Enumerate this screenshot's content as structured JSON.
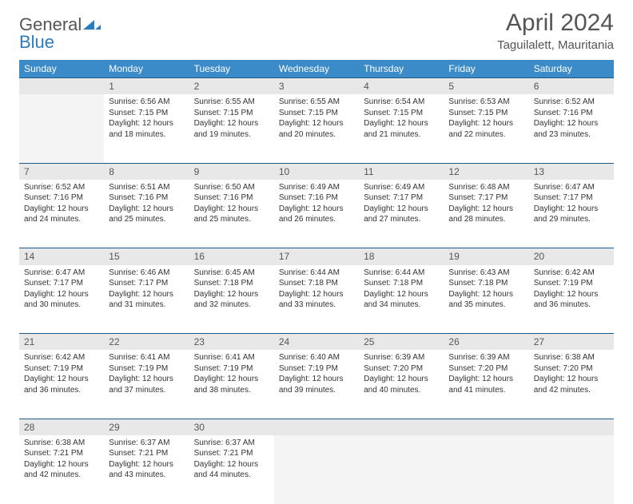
{
  "logo": {
    "text1": "General",
    "text2": "Blue"
  },
  "title": {
    "month": "April 2024",
    "location": "Taguilalett, Mauritania"
  },
  "colors": {
    "header_bg": "#3b8bc8",
    "header_text": "#ffffff",
    "daynum_bg": "#e8e8e8",
    "border": "#1f5a87",
    "empty_bg": "#f4f4f4",
    "text": "#333333",
    "title_color": "#555555"
  },
  "weekdays": [
    "Sunday",
    "Monday",
    "Tuesday",
    "Wednesday",
    "Thursday",
    "Friday",
    "Saturday"
  ],
  "weeks": [
    {
      "nums": [
        "",
        "1",
        "2",
        "3",
        "4",
        "5",
        "6"
      ],
      "cells": [
        null,
        {
          "sunrise": "6:56 AM",
          "sunset": "7:15 PM",
          "daylight": "12 hours and 18 minutes."
        },
        {
          "sunrise": "6:55 AM",
          "sunset": "7:15 PM",
          "daylight": "12 hours and 19 minutes."
        },
        {
          "sunrise": "6:55 AM",
          "sunset": "7:15 PM",
          "daylight": "12 hours and 20 minutes."
        },
        {
          "sunrise": "6:54 AM",
          "sunset": "7:15 PM",
          "daylight": "12 hours and 21 minutes."
        },
        {
          "sunrise": "6:53 AM",
          "sunset": "7:15 PM",
          "daylight": "12 hours and 22 minutes."
        },
        {
          "sunrise": "6:52 AM",
          "sunset": "7:16 PM",
          "daylight": "12 hours and 23 minutes."
        }
      ]
    },
    {
      "nums": [
        "7",
        "8",
        "9",
        "10",
        "11",
        "12",
        "13"
      ],
      "cells": [
        {
          "sunrise": "6:52 AM",
          "sunset": "7:16 PM",
          "daylight": "12 hours and 24 minutes."
        },
        {
          "sunrise": "6:51 AM",
          "sunset": "7:16 PM",
          "daylight": "12 hours and 25 minutes."
        },
        {
          "sunrise": "6:50 AM",
          "sunset": "7:16 PM",
          "daylight": "12 hours and 25 minutes."
        },
        {
          "sunrise": "6:49 AM",
          "sunset": "7:16 PM",
          "daylight": "12 hours and 26 minutes."
        },
        {
          "sunrise": "6:49 AM",
          "sunset": "7:17 PM",
          "daylight": "12 hours and 27 minutes."
        },
        {
          "sunrise": "6:48 AM",
          "sunset": "7:17 PM",
          "daylight": "12 hours and 28 minutes."
        },
        {
          "sunrise": "6:47 AM",
          "sunset": "7:17 PM",
          "daylight": "12 hours and 29 minutes."
        }
      ]
    },
    {
      "nums": [
        "14",
        "15",
        "16",
        "17",
        "18",
        "19",
        "20"
      ],
      "cells": [
        {
          "sunrise": "6:47 AM",
          "sunset": "7:17 PM",
          "daylight": "12 hours and 30 minutes."
        },
        {
          "sunrise": "6:46 AM",
          "sunset": "7:17 PM",
          "daylight": "12 hours and 31 minutes."
        },
        {
          "sunrise": "6:45 AM",
          "sunset": "7:18 PM",
          "daylight": "12 hours and 32 minutes."
        },
        {
          "sunrise": "6:44 AM",
          "sunset": "7:18 PM",
          "daylight": "12 hours and 33 minutes."
        },
        {
          "sunrise": "6:44 AM",
          "sunset": "7:18 PM",
          "daylight": "12 hours and 34 minutes."
        },
        {
          "sunrise": "6:43 AM",
          "sunset": "7:18 PM",
          "daylight": "12 hours and 35 minutes."
        },
        {
          "sunrise": "6:42 AM",
          "sunset": "7:19 PM",
          "daylight": "12 hours and 36 minutes."
        }
      ]
    },
    {
      "nums": [
        "21",
        "22",
        "23",
        "24",
        "25",
        "26",
        "27"
      ],
      "cells": [
        {
          "sunrise": "6:42 AM",
          "sunset": "7:19 PM",
          "daylight": "12 hours and 36 minutes."
        },
        {
          "sunrise": "6:41 AM",
          "sunset": "7:19 PM",
          "daylight": "12 hours and 37 minutes."
        },
        {
          "sunrise": "6:41 AM",
          "sunset": "7:19 PM",
          "daylight": "12 hours and 38 minutes."
        },
        {
          "sunrise": "6:40 AM",
          "sunset": "7:19 PM",
          "daylight": "12 hours and 39 minutes."
        },
        {
          "sunrise": "6:39 AM",
          "sunset": "7:20 PM",
          "daylight": "12 hours and 40 minutes."
        },
        {
          "sunrise": "6:39 AM",
          "sunset": "7:20 PM",
          "daylight": "12 hours and 41 minutes."
        },
        {
          "sunrise": "6:38 AM",
          "sunset": "7:20 PM",
          "daylight": "12 hours and 42 minutes."
        }
      ]
    },
    {
      "nums": [
        "28",
        "29",
        "30",
        "",
        "",
        "",
        ""
      ],
      "cells": [
        {
          "sunrise": "6:38 AM",
          "sunset": "7:21 PM",
          "daylight": "12 hours and 42 minutes."
        },
        {
          "sunrise": "6:37 AM",
          "sunset": "7:21 PM",
          "daylight": "12 hours and 43 minutes."
        },
        {
          "sunrise": "6:37 AM",
          "sunset": "7:21 PM",
          "daylight": "12 hours and 44 minutes."
        },
        null,
        null,
        null,
        null
      ]
    }
  ],
  "labels": {
    "sunrise": "Sunrise:",
    "sunset": "Sunset:",
    "daylight": "Daylight:"
  }
}
